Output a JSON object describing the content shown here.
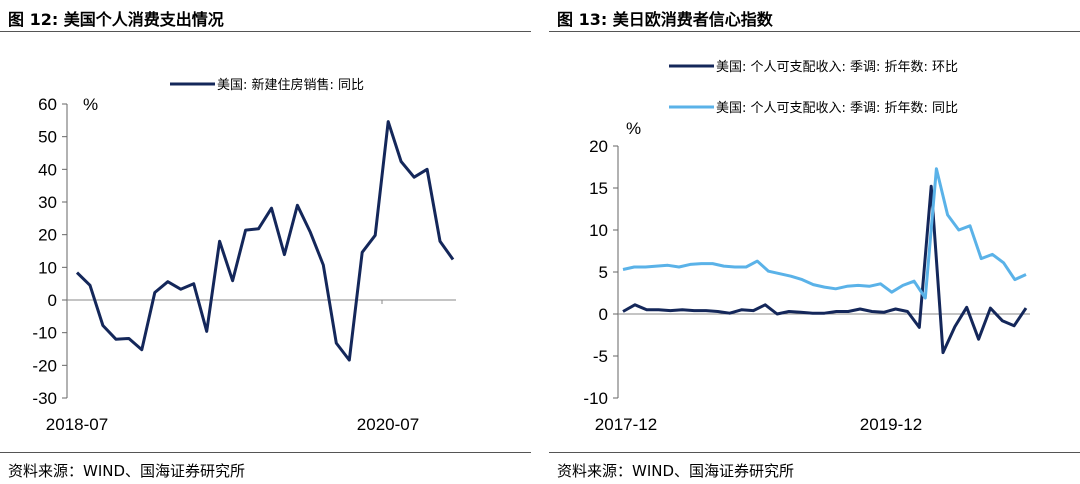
{
  "left": {
    "title": "图 12:  美国个人消费支出情况",
    "source": "资料来源：WIND、国海证券研究所",
    "chart_data": {
      "type": "line",
      "unit": "%",
      "ylim": [
        -30,
        60
      ],
      "yticks": [
        60,
        50,
        40,
        30,
        20,
        10,
        0,
        -10,
        -20,
        -30
      ],
      "xtick_labels": [
        "2018-07",
        "2020-07"
      ],
      "series": [
        {
          "name": "美国: 新建住房销售: 同比",
          "color": "#14275a",
          "values": [
            8.4,
            4.5,
            -7.8,
            -12.0,
            -11.8,
            -15.2,
            2.3,
            5.6,
            3.3,
            5.0,
            -9.6,
            18.0,
            5.9,
            21.4,
            21.8,
            28.1,
            13.9,
            29.0,
            20.7,
            10.7,
            -13.2,
            -18.4,
            14.6,
            19.8,
            54.6,
            42.4,
            37.6,
            40.0,
            18.0,
            12.4
          ]
        }
      ]
    }
  },
  "right": {
    "title": "图 13:  美日欧消费者信心指数",
    "source": "资料来源：WIND、国海证券研究所",
    "chart_data": {
      "type": "line",
      "unit": "%",
      "ylim": [
        -10,
        20
      ],
      "yticks": [
        20,
        15,
        10,
        5,
        0,
        -5,
        -10
      ],
      "xtick_labels": [
        "2017-12",
        "2019-12"
      ],
      "series": [
        {
          "name": "美国: 个人可支配收入: 季调: 折年数: 环比",
          "color": "#14275a",
          "values": [
            0.3,
            1.1,
            0.5,
            0.5,
            0.4,
            0.5,
            0.4,
            0.4,
            0.3,
            0.1,
            0.5,
            0.4,
            1.1,
            0.0,
            0.3,
            0.2,
            0.1,
            0.1,
            0.3,
            0.3,
            0.6,
            0.3,
            0.2,
            0.6,
            0.3,
            -1.6,
            15.2,
            -4.6,
            -1.5,
            0.8,
            -3.0,
            0.7,
            -0.8,
            -1.4,
            0.7
          ]
        },
        {
          "name": "美国: 个人可支配收入: 季调: 折年数: 同比",
          "color": "#5ab2e8",
          "values": [
            5.3,
            5.6,
            5.6,
            5.7,
            5.8,
            5.6,
            5.9,
            6.0,
            6.0,
            5.7,
            5.6,
            5.6,
            6.3,
            5.1,
            4.8,
            4.5,
            4.1,
            3.5,
            3.2,
            3.0,
            3.3,
            3.4,
            3.3,
            3.6,
            2.6,
            3.4,
            3.9,
            1.9,
            17.3,
            11.8,
            10.0,
            10.5,
            6.6,
            7.1,
            6.1,
            4.1,
            4.7
          ]
        }
      ]
    }
  }
}
